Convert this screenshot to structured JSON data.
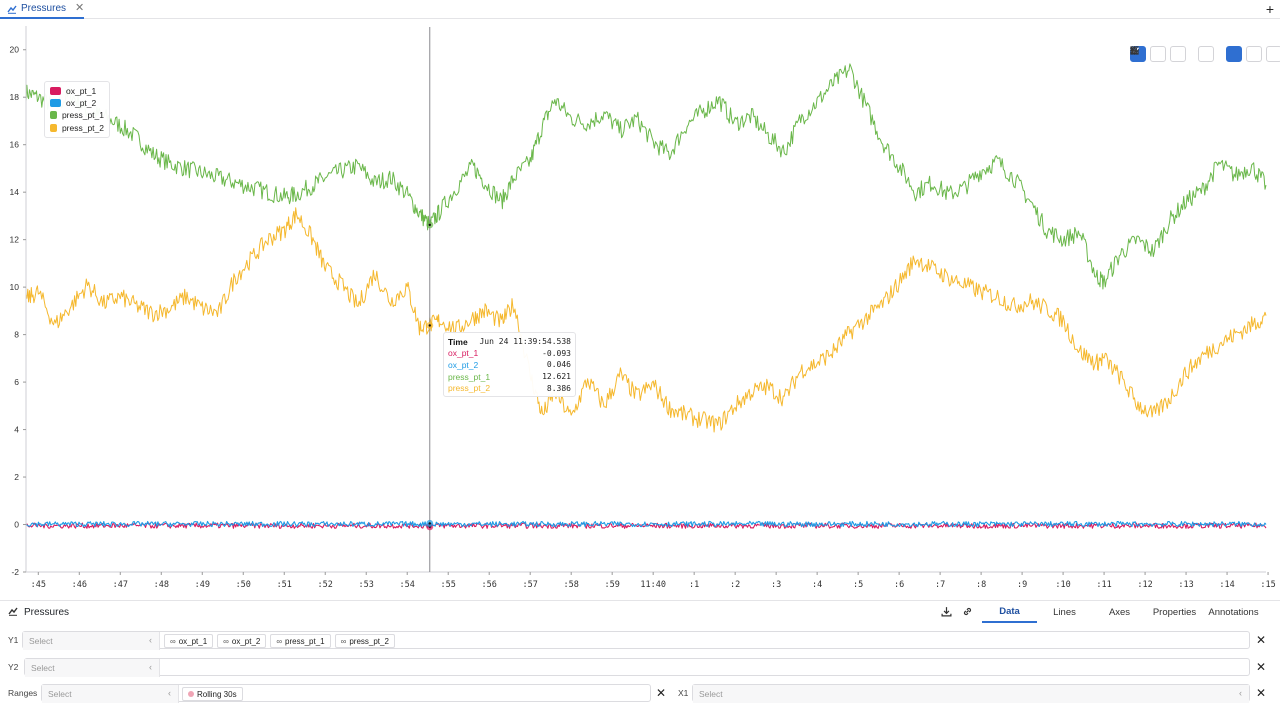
{
  "tabbar": {
    "tab_label": "Pressures",
    "close_glyph": "✕",
    "add_glyph": "+"
  },
  "toolbar": {
    "buttons": [
      "zoom-icon",
      "pan-icon",
      "box-select-icon",
      "fit-icon",
      "tooltip-icon",
      "annotate-icon",
      "pause-icon"
    ],
    "active": [
      "zoom-icon",
      "tooltip-icon"
    ]
  },
  "legend": [
    {
      "name": "ox_pt_1",
      "color": "#d81b60"
    },
    {
      "name": "ox_pt_2",
      "color": "#1e9be5"
    },
    {
      "name": "press_pt_1",
      "color": "#6ab74a"
    },
    {
      "name": "press_pt_2",
      "color": "#f5b82e"
    }
  ],
  "tooltip": {
    "time_label": "Time",
    "time_value": "Jun 24 11:39:54.538",
    "rows": [
      {
        "name": "ox_pt_1",
        "value": "-0.093",
        "color": "#d81b60"
      },
      {
        "name": "ox_pt_2",
        "value": "0.046",
        "color": "#1e9be5"
      },
      {
        "name": "press_pt_1",
        "value": "12.621",
        "color": "#6ab74a"
      },
      {
        "name": "press_pt_2",
        "value": "8.386",
        "color": "#f5b82e"
      }
    ]
  },
  "chart_data": {
    "type": "line",
    "ylim": [
      -2,
      21
    ],
    "y_ticks": [
      "-2",
      "0",
      "2",
      "4",
      "6",
      "8",
      "10",
      "12",
      "14",
      "16",
      "18",
      "20"
    ],
    "x_ticks": [
      ":45",
      ":46",
      ":47",
      ":48",
      ":49",
      ":50",
      ":51",
      ":52",
      ":53",
      ":54",
      ":55",
      ":56",
      ":57",
      ":58",
      ":59",
      "11:40",
      ":1",
      ":2",
      ":3",
      ":4",
      ":5",
      ":6",
      ":7",
      ":8",
      ":9",
      ":10",
      ":11",
      ":12",
      ":13",
      ":14",
      ":15"
    ],
    "xlim": [
      44.7,
      74.95
    ],
    "cursor_x": 54.55,
    "series": [
      {
        "name": "press_pt_1",
        "color": "#6ab74a",
        "x": [
          44.7,
          45.0,
          45.4,
          45.8,
          46.2,
          46.6,
          47.0,
          47.4,
          47.8,
          48.2,
          48.6,
          49.0,
          49.4,
          49.8,
          50.2,
          50.6,
          51.0,
          51.3,
          51.7,
          52.0,
          52.4,
          52.8,
          53.2,
          53.6,
          54.0,
          54.3,
          54.55,
          54.8,
          55.2,
          55.6,
          55.9,
          56.3,
          56.6,
          57.0,
          57.3,
          57.6,
          58.0,
          58.4,
          58.8,
          59.2,
          59.6,
          60.0,
          60.4,
          60.8,
          61.2,
          61.6,
          62.0,
          62.4,
          62.8,
          63.2,
          63.6,
          64.0,
          64.4,
          64.8,
          65.2,
          65.6,
          66.0,
          66.4,
          66.8,
          67.2,
          67.6,
          68.0,
          68.4,
          68.8,
          69.2,
          69.6,
          70.0,
          70.4,
          70.8,
          71.0,
          71.4,
          71.8,
          72.2,
          72.6,
          73.0,
          73.4,
          73.8,
          74.2,
          74.6,
          74.95
        ],
        "y": [
          18.2,
          18.0,
          17.6,
          18.1,
          17.4,
          17.2,
          16.8,
          16.3,
          15.6,
          15.2,
          15.0,
          14.8,
          14.6,
          14.4,
          14.2,
          14.0,
          13.8,
          13.9,
          14.3,
          14.6,
          14.9,
          15.1,
          14.4,
          14.6,
          13.9,
          13.1,
          12.6,
          13.2,
          14.2,
          15.1,
          14.4,
          13.6,
          14.6,
          15.3,
          16.8,
          17.9,
          17.1,
          16.9,
          17.3,
          16.6,
          17.1,
          16.1,
          15.6,
          16.8,
          17.4,
          17.9,
          16.9,
          17.2,
          16.4,
          15.7,
          17.1,
          17.8,
          18.6,
          19.2,
          17.6,
          16.1,
          15.1,
          14.0,
          14.4,
          13.9,
          14.2,
          14.9,
          15.3,
          14.6,
          13.6,
          12.4,
          12.0,
          12.3,
          10.5,
          10.2,
          11.4,
          12.0,
          11.5,
          12.8,
          13.6,
          14.1,
          15.2,
          14.7,
          15.1,
          14.3
        ]
      },
      {
        "name": "press_pt_2",
        "color": "#f5b82e",
        "x": [
          44.7,
          45.0,
          45.4,
          45.8,
          46.2,
          46.6,
          47.0,
          47.4,
          47.8,
          48.2,
          48.6,
          49.0,
          49.4,
          49.8,
          50.2,
          50.6,
          51.0,
          51.3,
          51.7,
          52.0,
          52.4,
          52.8,
          53.2,
          53.6,
          54.0,
          54.3,
          54.55,
          54.8,
          55.2,
          55.6,
          55.9,
          56.3,
          56.6,
          57.0,
          57.3,
          57.6,
          58.0,
          58.4,
          58.8,
          59.2,
          59.6,
          60.0,
          60.4,
          60.8,
          61.2,
          61.6,
          62.0,
          62.4,
          62.8,
          63.2,
          63.6,
          64.0,
          64.4,
          64.8,
          65.2,
          65.6,
          66.0,
          66.4,
          66.8,
          67.2,
          67.6,
          68.0,
          68.4,
          68.8,
          69.2,
          69.6,
          70.0,
          70.4,
          70.8,
          71.0,
          71.4,
          71.8,
          72.2,
          72.6,
          73.0,
          73.4,
          73.8,
          74.2,
          74.6,
          74.95
        ],
        "y": [
          9.5,
          9.8,
          8.4,
          9.2,
          10.1,
          9.3,
          9.6,
          9.2,
          8.9,
          9.1,
          9.6,
          9.1,
          8.9,
          10.4,
          11.2,
          12.0,
          12.4,
          13.1,
          12.0,
          10.8,
          10.1,
          9.2,
          10.6,
          9.4,
          10.0,
          8.3,
          8.4,
          8.6,
          8.2,
          8.7,
          9.0,
          8.5,
          9.3,
          6.3,
          4.6,
          5.6,
          4.5,
          6.1,
          5.0,
          6.3,
          5.4,
          5.9,
          4.9,
          4.6,
          4.4,
          4.2,
          5.0,
          5.6,
          5.8,
          5.3,
          6.5,
          6.8,
          7.3,
          8.1,
          8.7,
          9.3,
          10.2,
          11.2,
          10.8,
          10.4,
          10.1,
          9.8,
          9.6,
          9.2,
          9.4,
          9.1,
          8.6,
          7.3,
          6.8,
          7.0,
          6.2,
          5.1,
          4.6,
          5.3,
          6.4,
          7.1,
          7.6,
          8.0,
          8.4,
          8.8
        ]
      },
      {
        "name": "ox_pt_1",
        "color": "#d81b60",
        "x": [
          44.7,
          74.95
        ],
        "y": [
          -0.05,
          -0.05
        ]
      },
      {
        "name": "ox_pt_2",
        "color": "#1e9be5",
        "x": [
          44.7,
          74.95
        ],
        "y": [
          0.02,
          0.02
        ]
      }
    ]
  },
  "panel": {
    "title": "Pressures",
    "tabs": [
      "Data",
      "Lines",
      "Axes",
      "Properties",
      "Annotations"
    ],
    "active_tab": "Data",
    "y1": {
      "label": "Y1",
      "placeholder": "Select",
      "chips": [
        "ox_pt_1",
        "ox_pt_2",
        "press_pt_1",
        "press_pt_2"
      ]
    },
    "y2": {
      "label": "Y2",
      "placeholder": "Select"
    },
    "ranges": {
      "label": "Ranges",
      "placeholder": "Select",
      "chip": "Rolling 30s"
    },
    "x1": {
      "label": "X1",
      "placeholder": "Select"
    },
    "chip_prefix": "∞",
    "chevron": "‹",
    "clear_glyph": "✕"
  }
}
